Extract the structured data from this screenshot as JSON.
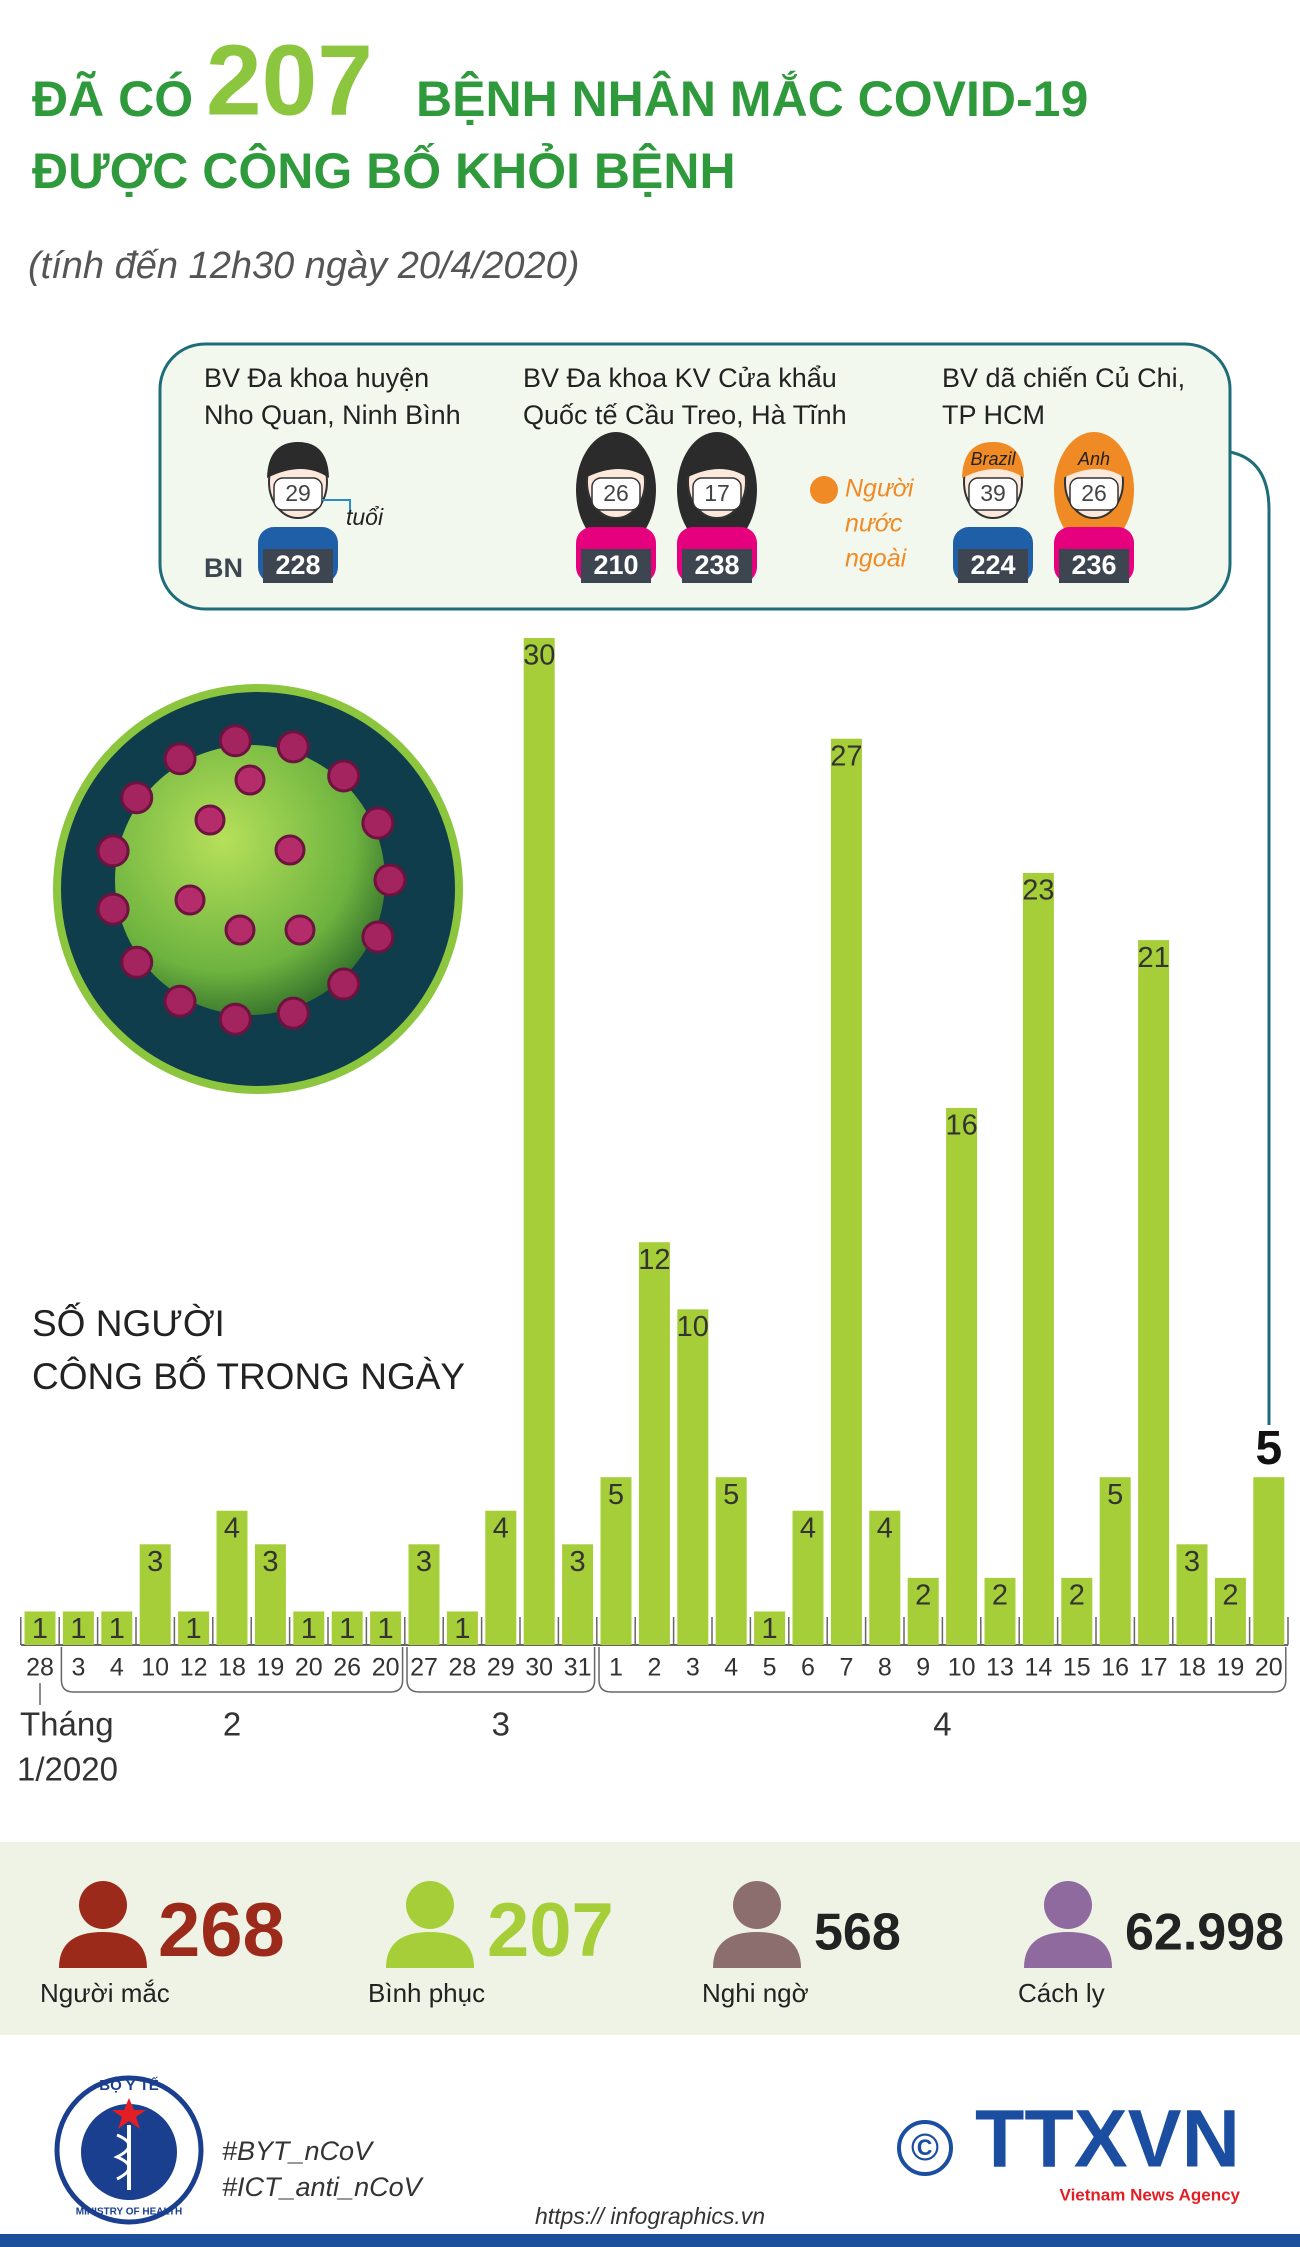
{
  "header": {
    "prefix": "ĐÃ CÓ",
    "number": "207",
    "line1_rest": "BỆNH NHÂN MẮC COVID-19",
    "line2": "ĐƯỢC CÔNG BỐ KHỎI BỆNH",
    "subtitle": "(tính đến 12h30 ngày 20/4/2020)"
  },
  "callout": {
    "id_label": "BN",
    "age_unit": "tuổi",
    "legend": [
      "Người",
      "nước",
      "ngoài"
    ],
    "hospitals": [
      {
        "name": [
          "BV Đa khoa huyện",
          "Nho Quan, Ninh Bình"
        ],
        "patients": [
          {
            "age": "29",
            "id": "228"
          }
        ]
      },
      {
        "name": [
          "BV Đa khoa KV Cửa khẩu",
          "Quốc tế Cầu Treo, Hà Tĩnh"
        ],
        "patients": [
          {
            "age": "26",
            "id": "210"
          },
          {
            "age": "17",
            "id": "238"
          }
        ]
      },
      {
        "name": [
          "BV dã chiến Củ Chi,",
          "TP HCM"
        ],
        "patients": [
          {
            "nationality": "Brazil",
            "age": "39",
            "id": "224"
          },
          {
            "nationality": "Anh",
            "age": "26",
            "id": "236"
          }
        ]
      }
    ]
  },
  "chart_data": {
    "type": "bar",
    "title": [
      "SỐ NGƯỜI",
      "CÔNG BỐ TRONG NGÀY"
    ],
    "color": "#a6ce39",
    "month_prefix": "Tháng",
    "groups": [
      {
        "label": "1/2020",
        "categories": [
          "28"
        ],
        "values": [
          1
        ]
      },
      {
        "label": "2",
        "categories": [
          "3",
          "4",
          "10",
          "12",
          "18",
          "19",
          "20",
          "26",
          "20"
        ],
        "values": [
          1,
          1,
          3,
          1,
          4,
          3,
          1,
          1,
          1
        ]
      },
      {
        "label": "3",
        "categories": [
          "27",
          "28",
          "29",
          "30",
          "31"
        ],
        "values": [
          3,
          1,
          4,
          30,
          3
        ]
      },
      {
        "label": "4",
        "categories": [
          "1",
          "2",
          "3",
          "4",
          "5",
          "6",
          "7",
          "8",
          "9",
          "10",
          "13",
          "14",
          "15",
          "16",
          "17",
          "18",
          "19",
          "20"
        ],
        "values": [
          5,
          12,
          10,
          5,
          1,
          4,
          27,
          4,
          2,
          16,
          2,
          23,
          2,
          5,
          21,
          3,
          2,
          5
        ]
      }
    ]
  },
  "stats": [
    {
      "value": "268",
      "label": "Người mắc",
      "color": "#9b2a1a"
    },
    {
      "value": "207",
      "label": "Bình phục",
      "color": "#a6ce39"
    },
    {
      "value": "568",
      "label": "Nghi ngờ",
      "color": "#8c6e6e"
    },
    {
      "value": "62.998",
      "label": "Cách ly",
      "color": "#8e6a9e"
    }
  ],
  "footer": {
    "logo_top": "BỘ Y TẾ",
    "logo_bottom": "MINISTRY OF HEALTH",
    "hashtags": [
      "#BYT_nCoV",
      "#ICT_anti_nCoV"
    ],
    "copyright": "©",
    "agency": "TTXVN",
    "agency_en": "Vietnam News Agency",
    "url": "https:// infographics.vn"
  }
}
